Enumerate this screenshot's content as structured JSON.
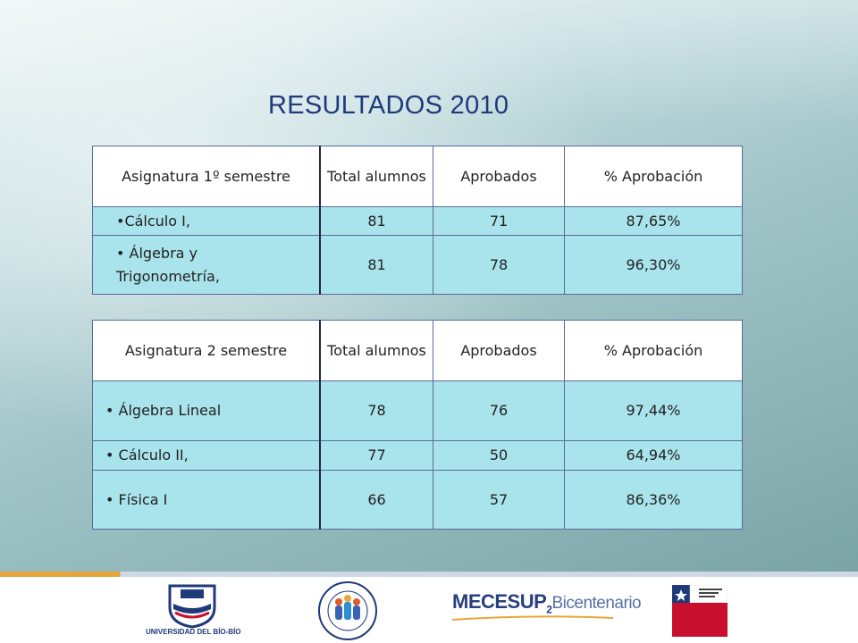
{
  "title": "RESULTADOS 2010",
  "table1": {
    "headers": [
      "Asignatura 1º semestre",
      "Total alumnos",
      "Aprobados",
      "% Aprobación"
    ],
    "rows": [
      {
        "subject": "•Cálculo I,",
        "total": "81",
        "approved": "71",
        "pct": "87,65%"
      },
      {
        "subject": "• Álgebra y Trigonometría,",
        "total": "81",
        "approved": "78",
        "pct": "96,30%"
      }
    ]
  },
  "table2": {
    "headers": [
      "Asignatura 2 semestre",
      "Total alumnos",
      "Aprobados",
      "% Aprobación"
    ],
    "rows": [
      {
        "subject": "• Álgebra Lineal",
        "total": "78",
        "approved": "76",
        "pct": "97,44%"
      },
      {
        "subject": "• Cálculo II,",
        "total": "77",
        "approved": "50",
        "pct": "64,94%"
      },
      {
        "subject": "• Física I",
        "total": "66",
        "approved": "57",
        "pct": "86,36%"
      }
    ]
  },
  "footer": {
    "ubb": "UNIVERSIDAD DEL BÍO-BÍO",
    "mecesup_main": "MECESUP",
    "mecesup_sub": "2",
    "mecesup_bic": "Bicentenario",
    "colors": {
      "accent": "#e8a63a",
      "navy": "#1f3a7a",
      "cell": "#a9e3ec"
    }
  }
}
